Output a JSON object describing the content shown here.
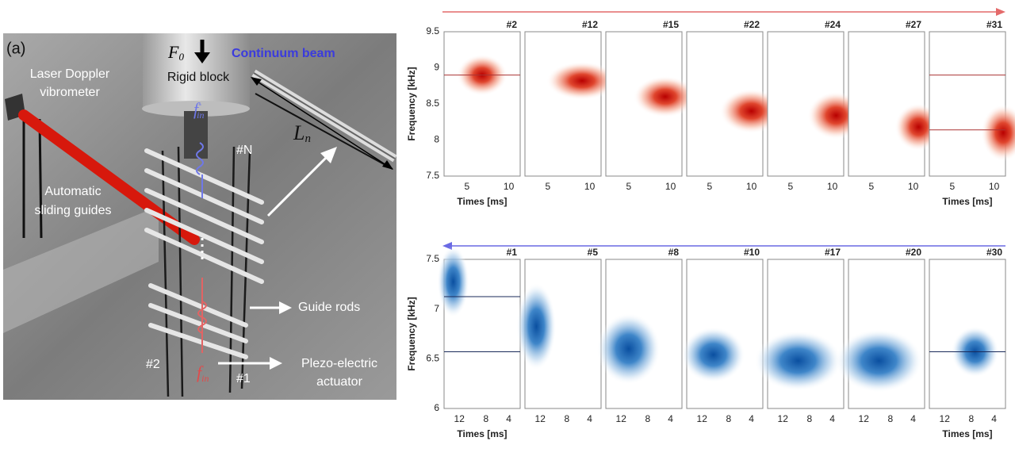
{
  "photo": {
    "panel_label": "(a)",
    "force": {
      "symbol": "F",
      "subscript": "0"
    },
    "rigid_block": "Rigid block",
    "continuum_beam": "Continuum beam",
    "vibrometer": [
      "Laser Doppler",
      "vibrometer"
    ],
    "length": {
      "symbol": "L",
      "subscript": "n"
    },
    "top_cell": "#N",
    "sliding_guides": [
      "Automatic",
      "sliding guides"
    ],
    "guide_rods": "Guide rods",
    "actuator": [
      "Plezo-electric",
      "actuator"
    ],
    "cell_2": "#2",
    "cell_1": "#1",
    "f_out": {
      "symbol": "f",
      "subscript": "in",
      "superscript": "-"
    },
    "f_in": {
      "symbol": "f",
      "subscript": "in"
    }
  },
  "top_row": {
    "panels": [
      "#2",
      "#12",
      "#15",
      "#22",
      "#24",
      "#27",
      "#31"
    ],
    "yticks": [
      "9.5",
      "9",
      "8.5",
      "8",
      "7.5"
    ],
    "xticks": [
      "5",
      "10"
    ],
    "ylabel": "Frequency [kHz]",
    "xlabel": "Times [ms]"
  },
  "bottom_row": {
    "panels": [
      "#1",
      "#5",
      "#8",
      "#10",
      "#17",
      "#20",
      "#30"
    ],
    "yticks": [
      "7.5",
      "7",
      "6.5",
      "6"
    ],
    "xticks": [
      "12",
      "8",
      "4"
    ],
    "ylabel": "Frequency [kHz]",
    "xlabel": "Times [ms]"
  }
}
